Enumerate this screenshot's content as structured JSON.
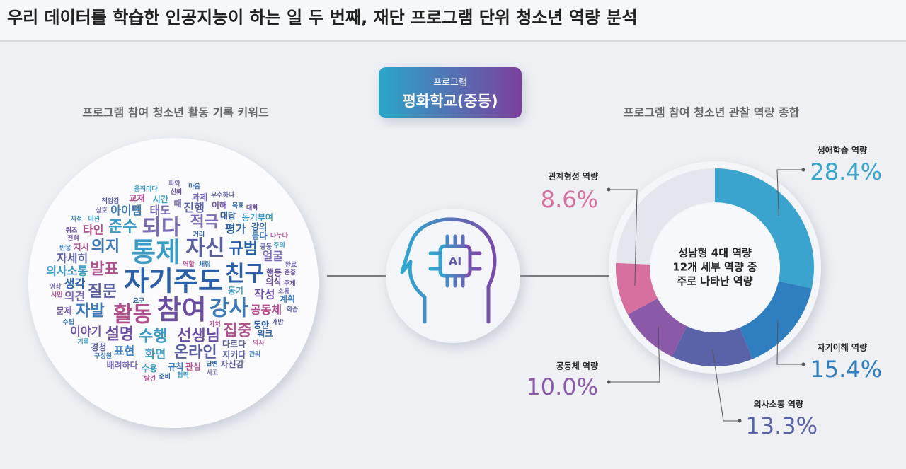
{
  "header": {
    "title": "우리 데이터를 학습한 인공지능이 하는 일 두 번째, 재단 프로그램 단위 청소년 역량 분석"
  },
  "program_badge": {
    "label": "프로그램",
    "name": "평화학교(중등)"
  },
  "word_cloud": {
    "title": "프로그램 참여 청소년 활동 기록 키워드",
    "colors": [
      "#2b5fa8",
      "#6a4fa0",
      "#3a9bc4",
      "#5a5f9e",
      "#b0508c",
      "#3c7ab8",
      "#7b6bb5"
    ],
    "words": [
      "자기주도",
      "참여",
      "통제",
      "자신",
      "활동",
      "강사",
      "되다",
      "친구",
      "선생님",
      "수행",
      "질문",
      "발표",
      "의지",
      "적극",
      "규범",
      "설명",
      "준수",
      "온라인",
      "집중",
      "자발",
      "태도",
      "평가",
      "작성",
      "화면",
      "진행",
      "공동체",
      "표현",
      "의견",
      "생각",
      "이야기",
      "의사소통",
      "자세히",
      "타인",
      "아이템",
      "얼굴",
      "대답",
      "행동",
      "동기",
      "다르다",
      "지시",
      "듣다",
      "때",
      "동안",
      "의식",
      "시간",
      "지키다",
      "관심",
      "규칙",
      "과제",
      "강의",
      "이해",
      "수용",
      "경청",
      "교재",
      "계획",
      "배려하다",
      "워크",
      "문제",
      "동기부여",
      "자신감",
      "역할",
      "채팅",
      "영상",
      "요구",
      "전혀",
      "미션",
      "공동",
      "가치",
      "구성원",
      "소통",
      "답변",
      "신뢰",
      "주의",
      "개방",
      "의사",
      "수립",
      "상호",
      "목표",
      "존중",
      "협력",
      "책임감",
      "시민",
      "반응",
      "완료",
      "거리",
      "주제",
      "움직이다",
      "우수하다",
      "나누다",
      "관리",
      "사고",
      "준비",
      "퀴즈",
      "기록",
      "학습",
      "발견",
      "지적",
      "파악",
      "마음",
      "대화"
    ]
  },
  "icon_label": "AI",
  "chart_data": {
    "type": "donut",
    "title": "프로그램 참여 청소년 관찰 역량 종합",
    "center_text": [
      "성남형 4대 역량",
      "12개 세부 역량 중",
      "주로 나타난 역량"
    ],
    "categories": [
      "생애학습 역량",
      "자기이해 역량",
      "의사소통 역량",
      "공동체 역량",
      "관계형성 역량"
    ],
    "values": [
      28.4,
      15.4,
      13.3,
      10.0,
      8.6
    ],
    "value_labels": [
      "28.4%",
      "15.4%",
      "13.3%",
      "10.0%",
      "8.6%"
    ],
    "colors": [
      "#3aa4cf",
      "#2f7fc0",
      "#5a62a8",
      "#8a5aa8",
      "#d7709f"
    ],
    "ylim": [
      0,
      100
    ]
  }
}
